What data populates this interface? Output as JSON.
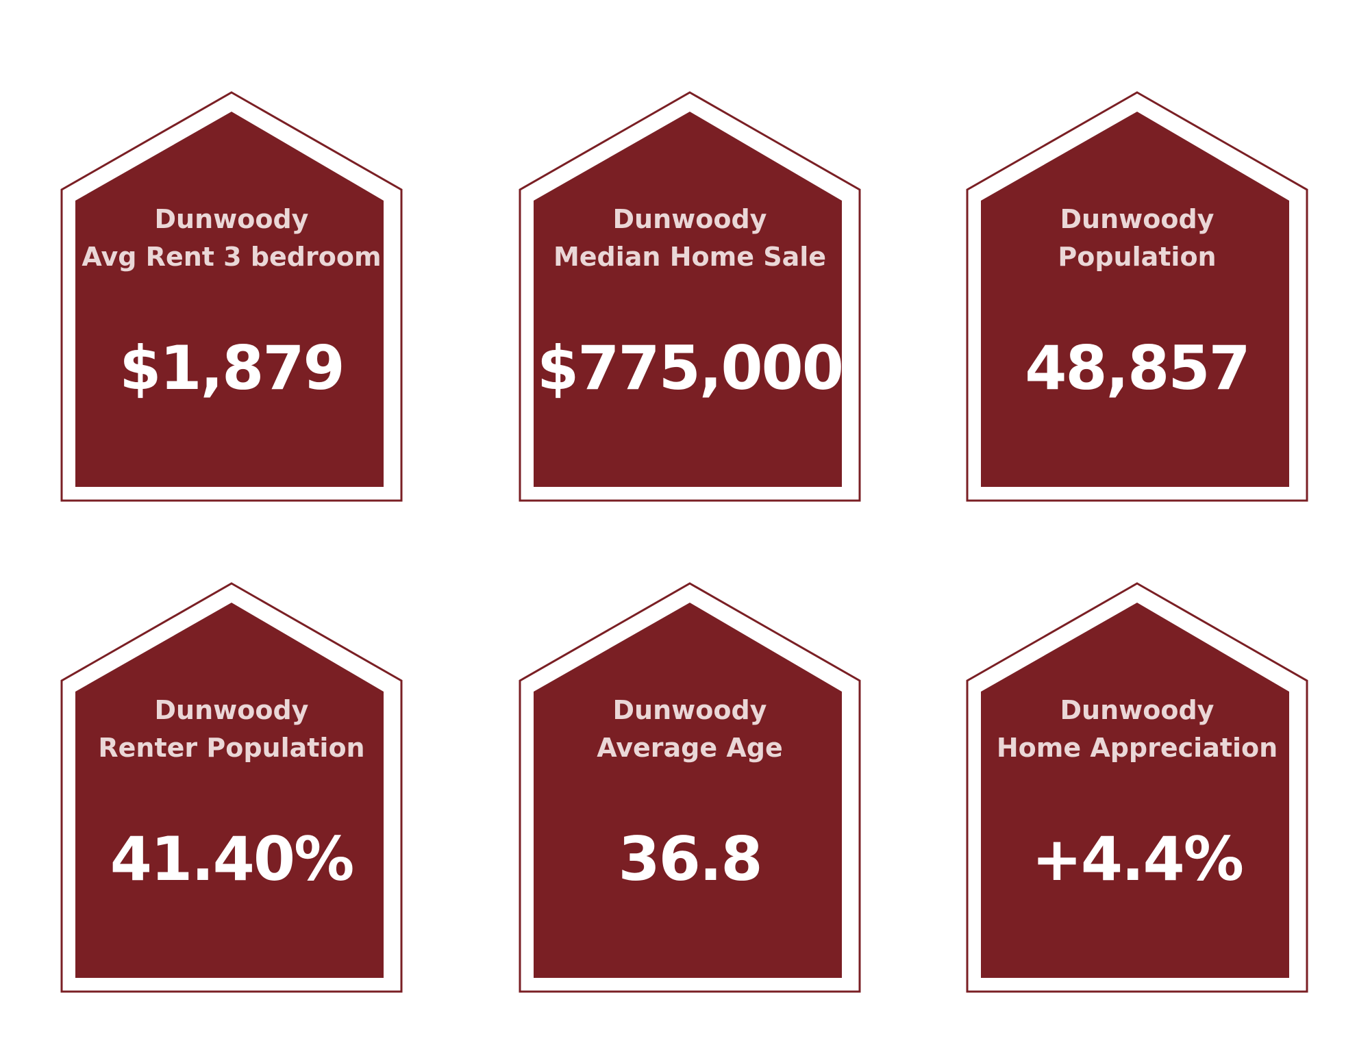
{
  "colors": {
    "card_fill": "#7a1f24",
    "card_outline": "#7a1f24",
    "title_text": "#ead7d7",
    "value_text": "#ffffff",
    "background": "#ffffff"
  },
  "cards": [
    {
      "city": "Dunwoody",
      "label": "Avg Rent 3 bedroom",
      "value": "$1,879"
    },
    {
      "city": "Dunwoody",
      "label": "Median Home Sale",
      "value": "$775,000"
    },
    {
      "city": "Dunwoody",
      "label": "Population",
      "value": "48,857"
    },
    {
      "city": "Dunwoody",
      "label": "Renter Population",
      "value": "41.40%"
    },
    {
      "city": "Dunwoody",
      "label": "Average Age",
      "value": "36.8"
    },
    {
      "city": "Dunwoody",
      "label": "Home Appreciation",
      "value": "+4.4%"
    }
  ]
}
